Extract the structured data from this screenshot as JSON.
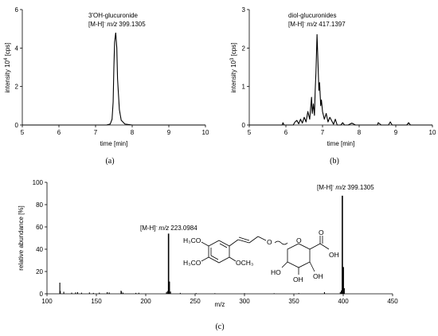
{
  "chart_data": [
    {
      "type": "line",
      "panel": "(a)",
      "annotation_name": "3'OH-glucuronide",
      "annotation_ion": "[M-H]",
      "annotation_mz_label": "m/z",
      "annotation_mz_value": "399.1305",
      "xlabel": "time [min]",
      "ylabel_prefix": "intensity  10",
      "ylabel_exp": "4",
      "ylabel_unit": " [cps]",
      "xlim": [
        5,
        10
      ],
      "ylim": [
        0,
        6
      ],
      "xticks": [
        "5",
        "6",
        "7",
        "8",
        "9",
        "10"
      ],
      "yticks": [
        "0",
        "2",
        "4",
        "6"
      ],
      "series": [
        {
          "x": [
            5.0,
            7.3,
            7.4,
            7.45,
            7.48,
            7.5,
            7.52,
            7.55,
            7.58,
            7.6,
            7.65,
            7.7,
            7.8,
            8.0,
            10.0
          ],
          "y": [
            0.0,
            0.0,
            0.05,
            0.3,
            1.2,
            3.0,
            4.3,
            4.8,
            4.0,
            2.4,
            0.8,
            0.25,
            0.05,
            0.0,
            0.0
          ]
        }
      ]
    },
    {
      "type": "line",
      "panel": "(b)",
      "annotation_name": "diol-glucuronides",
      "annotation_ion": "[M-H]",
      "annotation_mz_label": "m/z",
      "annotation_mz_value": "417.1397",
      "xlabel": "time [min]",
      "ylabel_prefix": "intensity  10",
      "ylabel_exp": "3",
      "ylabel_unit": " [cps]",
      "xlim": [
        5,
        10
      ],
      "ylim": [
        0,
        3
      ],
      "xticks": [
        "5",
        "6",
        "7",
        "8",
        "9",
        "10"
      ],
      "yticks": [
        "0",
        "1",
        "2",
        "3"
      ],
      "series": [
        {
          "x": [
            5.0,
            5.9,
            5.92,
            5.95,
            6.2,
            6.25,
            6.3,
            6.35,
            6.4,
            6.45,
            6.5,
            6.55,
            6.6,
            6.65,
            6.7,
            6.72,
            6.75,
            6.78,
            6.8,
            6.82,
            6.85,
            6.87,
            6.9,
            6.92,
            6.95,
            6.97,
            7.0,
            7.05,
            7.1,
            7.15,
            7.2,
            7.3,
            7.35,
            7.4,
            7.5,
            7.55,
            7.6,
            7.7,
            7.8,
            7.9,
            8.0,
            8.3,
            8.5,
            8.52,
            8.6,
            8.8,
            8.85,
            8.9,
            9.3,
            9.35,
            9.4,
            10.0
          ],
          "y": [
            0.0,
            0.0,
            0.06,
            0.0,
            0.0,
            0.08,
            0.12,
            0.03,
            0.15,
            0.05,
            0.2,
            0.08,
            0.35,
            0.15,
            0.72,
            0.3,
            0.55,
            0.25,
            0.9,
            1.35,
            2.35,
            1.8,
            0.9,
            1.1,
            0.5,
            0.65,
            0.35,
            0.15,
            0.3,
            0.08,
            0.2,
            0.02,
            0.15,
            0.0,
            0.0,
            0.06,
            0.0,
            0.0,
            0.05,
            0.0,
            0.0,
            0.0,
            0.0,
            0.06,
            0.0,
            0.0,
            0.08,
            0.0,
            0.0,
            0.06,
            0.0,
            0.0
          ]
        }
      ]
    },
    {
      "type": "bar",
      "panel": "(c)",
      "xlabel": "m/z",
      "ylabel": "relative abundance [%]",
      "xlim": [
        100,
        450
      ],
      "ylim": [
        0,
        100
      ],
      "xticks": [
        "100",
        "150",
        "200",
        "250",
        "300",
        "350",
        "400",
        "450"
      ],
      "yticks": [
        "0",
        "20",
        "40",
        "60",
        "80",
        "100"
      ],
      "annotations": [
        {
          "ion": "[M-H]",
          "mz_label": "m/z",
          "mz_value": "223.0984",
          "x": 223.1,
          "y": 54
        },
        {
          "ion": "[M-H]",
          "mz_label": "m/z",
          "mz_value": "399.1305",
          "x": 399.1,
          "y": 88
        }
      ],
      "peaks": {
        "mz": [
          113.0,
          113.5,
          117.0,
          125.0,
          129.0,
          131.0,
          135.0,
          143.0,
          147.0,
          153.0,
          161.0,
          163.0,
          175.0,
          175.5,
          177.0,
          190.0,
          193.0,
          221.0,
          222.0,
          223.1,
          224.1,
          225.1,
          235.0,
          251.0,
          270.0,
          300.0,
          330.0,
          355.0,
          381.0,
          397.0,
          398.0,
          399.1,
          400.1,
          401.1
        ],
        "abundance": [
          10.0,
          2.5,
          1.8,
          1.0,
          1.2,
          1.5,
          1.0,
          1.2,
          0.8,
          1.0,
          1.5,
          1.2,
          2.8,
          2.0,
          1.0,
          0.8,
          0.9,
          1.5,
          2.5,
          54.0,
          11.0,
          2.0,
          0.8,
          0.6,
          0.5,
          0.5,
          0.5,
          0.6,
          1.5,
          1.5,
          3.0,
          88.0,
          24.0,
          5.0
        ]
      },
      "structure_labels": {
        "h3co_top": "H₃CO",
        "h3co_bottom": "H₃CO",
        "och3": "OCH₃",
        "o_link": "O",
        "oh_acid": "OH",
        "oh_left": "HO",
        "oh_mid": "OH",
        "oh_bottom": "OH",
        "ring_o": "O",
        "acid_o": "O"
      }
    }
  ]
}
